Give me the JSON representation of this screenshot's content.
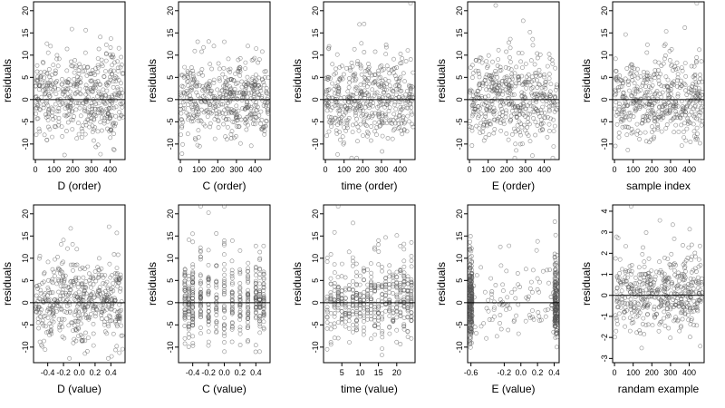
{
  "colors": {
    "points": "#555555",
    "reference_line": "#000000",
    "background": "#ffffff"
  },
  "chart_data": [
    {
      "type": "scatter",
      "xlabel": "D (order)",
      "ylabel": "residuals",
      "xlim": [
        -10,
        480
      ],
      "ylim": [
        -13.5,
        22
      ],
      "xticks": [
        0,
        100,
        200,
        300,
        400
      ],
      "xtick_labels": [
        "0",
        "100",
        "200",
        "300",
        "400"
      ],
      "yticks": [
        -10,
        -5,
        0,
        5,
        10,
        15,
        20
      ],
      "ytick_labels": [
        "-10",
        "-5",
        "0",
        "5",
        "10",
        "15",
        "20"
      ],
      "hline": 0,
      "n_points": 470,
      "x_kind": "index",
      "x_range": [
        1,
        470
      ],
      "sd": 5.5,
      "grid": false
    },
    {
      "type": "scatter",
      "xlabel": "C (order)",
      "ylabel": "residuals",
      "xlim": [
        -10,
        480
      ],
      "ylim": [
        -13.5,
        22
      ],
      "xticks": [
        0,
        100,
        200,
        300,
        400
      ],
      "xtick_labels": [
        "0",
        "100",
        "200",
        "300",
        "400"
      ],
      "yticks": [
        -10,
        -5,
        0,
        5,
        10,
        15,
        20
      ],
      "ytick_labels": [
        "-10",
        "-5",
        "0",
        "5",
        "10",
        "15",
        "20"
      ],
      "hline": 0,
      "n_points": 470,
      "x_kind": "index",
      "x_range": [
        1,
        470
      ],
      "sd": 5.5,
      "grid": false
    },
    {
      "type": "scatter",
      "xlabel": "time (order)",
      "ylabel": "residuals",
      "xlim": [
        -10,
        480
      ],
      "ylim": [
        -13.5,
        22
      ],
      "xticks": [
        0,
        100,
        200,
        300,
        400
      ],
      "xtick_labels": [
        "0",
        "100",
        "200",
        "300",
        "400"
      ],
      "yticks": [
        -10,
        -5,
        0,
        5,
        10,
        15,
        20
      ],
      "ytick_labels": [
        "-10",
        "-5",
        "0",
        "5",
        "10",
        "15",
        "20"
      ],
      "hline": 0,
      "n_points": 470,
      "x_kind": "index",
      "x_range": [
        1,
        470
      ],
      "sd": 5.5,
      "grid": false
    },
    {
      "type": "scatter",
      "xlabel": "E (order)",
      "ylabel": "residuals",
      "xlim": [
        -10,
        480
      ],
      "ylim": [
        -13.5,
        22
      ],
      "xticks": [
        0,
        100,
        200,
        300,
        400
      ],
      "xtick_labels": [
        "0",
        "100",
        "200",
        "300",
        "400"
      ],
      "yticks": [
        -10,
        -5,
        0,
        5,
        10,
        15,
        20
      ],
      "ytick_labels": [
        "-10",
        "-5",
        "0",
        "5",
        "10",
        "15",
        "20"
      ],
      "hline": 0,
      "n_points": 470,
      "x_kind": "index",
      "x_range": [
        1,
        470
      ],
      "sd": 5.5,
      "grid": false
    },
    {
      "type": "scatter",
      "xlabel": "sample index",
      "ylabel": "residuals",
      "xlim": [
        -10,
        480
      ],
      "ylim": [
        -13.5,
        22
      ],
      "xticks": [
        0,
        100,
        200,
        300,
        400
      ],
      "xtick_labels": [
        "0",
        "100",
        "200",
        "300",
        "400"
      ],
      "yticks": [
        -10,
        -5,
        0,
        5,
        10,
        15,
        20
      ],
      "ytick_labels": [
        "-10",
        "-5",
        "0",
        "5",
        "10",
        "15",
        "20"
      ],
      "hline": 0,
      "n_points": 470,
      "x_kind": "index",
      "x_range": [
        1,
        470
      ],
      "sd": 5.5,
      "grid": false
    },
    {
      "type": "scatter",
      "xlabel": "D (value)",
      "ylabel": "residuals",
      "xlim": [
        -0.58,
        0.58
      ],
      "ylim": [
        -13.5,
        22
      ],
      "xticks": [
        -0.4,
        -0.2,
        0,
        0.2,
        0.4
      ],
      "xtick_labels": [
        "-0.4",
        "-0.2",
        "0.0",
        "0.2",
        "0.4"
      ],
      "yticks": [
        -10,
        -5,
        0,
        5,
        10,
        15,
        20
      ],
      "ytick_labels": [
        "-10",
        "-5",
        "0",
        "5",
        "10",
        "15",
        "20"
      ],
      "hline": 0,
      "n_points": 470,
      "x_kind": "continuous",
      "x_range": [
        -0.55,
        0.55
      ],
      "sd": 5.5,
      "grid": false
    },
    {
      "type": "scatter",
      "xlabel": "C (value)",
      "ylabel": "residuals",
      "xlim": [
        -0.58,
        0.58
      ],
      "ylim": [
        -13.5,
        22
      ],
      "xticks": [
        -0.4,
        -0.2,
        0,
        0.2,
        0.4
      ],
      "xtick_labels": [
        "-0.4",
        "-0.2",
        "0.0",
        "0.2",
        "0.4"
      ],
      "yticks": [
        -10,
        -5,
        0,
        5,
        10,
        15,
        20
      ],
      "ytick_labels": [
        "-10",
        "-5",
        "0",
        "5",
        "10",
        "15",
        "20"
      ],
      "hline": 0,
      "n_points": 470,
      "x_kind": "discrete",
      "x_values": [
        -0.5,
        -0.45,
        -0.4,
        -0.3,
        -0.2,
        -0.1,
        0,
        0.1,
        0.2,
        0.3,
        0.4,
        0.45,
        0.5
      ],
      "sd": 5.5,
      "grid": false
    },
    {
      "type": "scatter",
      "xlabel": "time (value)",
      "ylabel": "residuals",
      "xlim": [
        0,
        25
      ],
      "ylim": [
        -13.5,
        22
      ],
      "xticks": [
        5,
        10,
        15,
        20
      ],
      "xtick_labels": [
        "5",
        "10",
        "15",
        "20"
      ],
      "yticks": [
        -10,
        -5,
        0,
        5,
        10,
        15,
        20
      ],
      "ytick_labels": [
        "-10",
        "-5",
        "0",
        "5",
        "10",
        "15",
        "20"
      ],
      "hline": 0,
      "n_points": 470,
      "x_kind": "discrete",
      "x_values": [
        1,
        2,
        3,
        4,
        5,
        6,
        7,
        8,
        9,
        10,
        11,
        12,
        13,
        14,
        15,
        16,
        17,
        18,
        19,
        20,
        21,
        22,
        23,
        24
      ],
      "sd": 5.5,
      "grid": false
    },
    {
      "type": "scatter",
      "xlabel": "E (value)",
      "ylabel": "residuals",
      "xlim": [
        -0.64,
        0.46
      ],
      "ylim": [
        -13.5,
        22
      ],
      "xticks": [
        -0.6,
        -0.2,
        0,
        0.2,
        0.4
      ],
      "xtick_labels": [
        "-0.6",
        "-0.2",
        "0.0",
        "0.2",
        "0.4"
      ],
      "yticks": [
        -10,
        -5,
        0,
        5,
        10,
        15,
        20
      ],
      "ytick_labels": [
        "-10",
        "-5",
        "0",
        "5",
        "10",
        "15",
        "20"
      ],
      "hline": 0,
      "n_points": 470,
      "x_kind": "clustered",
      "x_clusters": [
        -0.6,
        0.42
      ],
      "x_range": [
        -0.6,
        0.42
      ],
      "sd": 5.5,
      "grid": false
    },
    {
      "type": "scatter",
      "xlabel": "randam example",
      "ylabel": "residuals",
      "xlim": [
        -10,
        480
      ],
      "ylim": [
        -3.2,
        4.3
      ],
      "xticks": [
        0,
        100,
        200,
        300,
        400
      ],
      "xtick_labels": [
        "0",
        "100",
        "200",
        "300",
        "400"
      ],
      "yticks": [
        -3,
        -2,
        -1,
        0,
        1,
        2,
        3,
        4
      ],
      "ytick_labels": [
        "-3",
        "-2",
        "-1",
        "0",
        "1",
        "2",
        "3",
        "4"
      ],
      "hline": 0,
      "n_points": 470,
      "x_kind": "index",
      "x_range": [
        1,
        470
      ],
      "sd": 1.0,
      "grid": false
    }
  ]
}
